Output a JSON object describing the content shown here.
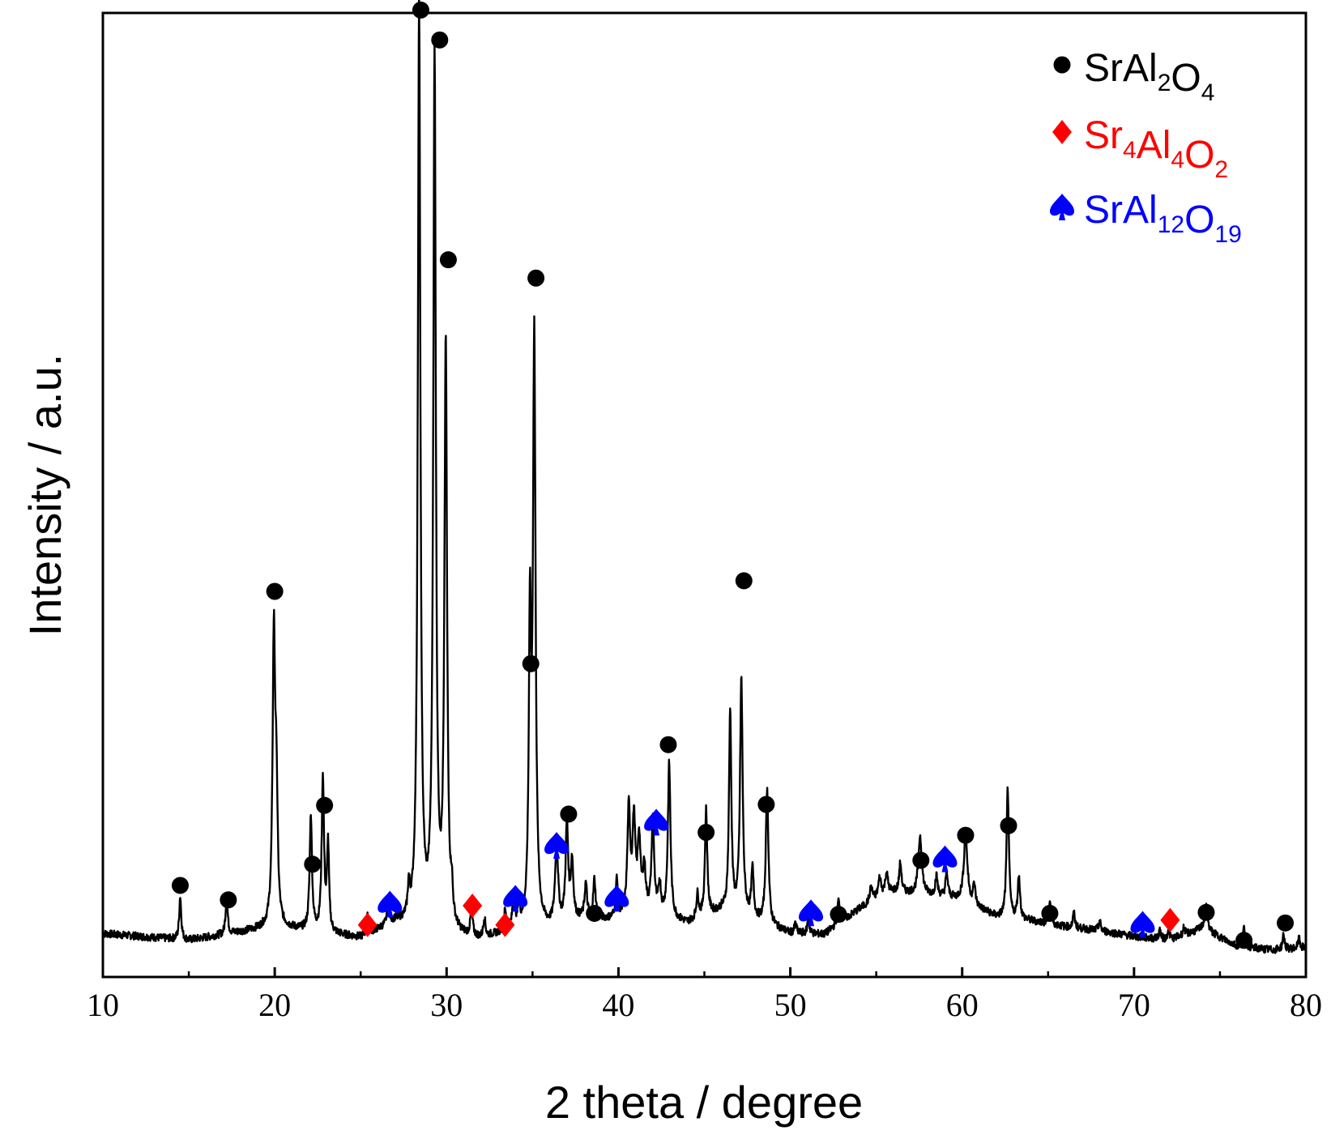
{
  "chart_data": {
    "type": "line",
    "title": "",
    "xlabel": "2 theta / degree",
    "ylabel": "Intensity / a.u.",
    "xlim": [
      10,
      80
    ],
    "ylim": [
      0,
      1000
    ],
    "xticks": [
      10,
      20,
      30,
      40,
      50,
      60,
      70,
      80
    ],
    "yticks_shown": false,
    "grid": false,
    "legend_position": "top-right",
    "colors": {
      "pattern": "#000000",
      "SrAl2O4": "#000000",
      "Sr4Al4O2": "#ff0000",
      "SrAl12O19": "#0000ff"
    },
    "legend": [
      {
        "key": "SrAl2O4",
        "marker": "circle",
        "color": "#000000",
        "parts": [
          {
            "t": "SrAl"
          },
          {
            "t": "2",
            "sub": true
          },
          {
            "t": "O"
          },
          {
            "t": "4",
            "sub": true
          }
        ]
      },
      {
        "key": "Sr4Al4O2",
        "marker": "diamond",
        "color": "#ff0000",
        "parts": [
          {
            "t": "Sr"
          },
          {
            "t": "4",
            "sub": true
          },
          {
            "t": "Al"
          },
          {
            "t": "4",
            "sub": true
          },
          {
            "t": "O"
          },
          {
            "t": "2",
            "sub": true
          }
        ]
      },
      {
        "key": "SrAl12O19",
        "marker": "spade",
        "color": "#0000ff",
        "parts": [
          {
            "t": "SrAl"
          },
          {
            "t": "12",
            "sub": true
          },
          {
            "t": "O"
          },
          {
            "t": "19",
            "sub": true
          }
        ]
      }
    ],
    "baseline": [
      [
        10,
        45
      ],
      [
        15,
        38
      ],
      [
        20,
        52
      ],
      [
        25,
        40
      ],
      [
        27,
        55
      ],
      [
        30,
        42
      ],
      [
        32,
        38
      ],
      [
        34,
        48
      ],
      [
        36,
        50
      ],
      [
        38,
        60
      ],
      [
        40,
        58
      ],
      [
        42,
        65
      ],
      [
        44,
        55
      ],
      [
        46,
        68
      ],
      [
        48,
        58
      ],
      [
        50,
        45
      ],
      [
        52,
        44
      ],
      [
        54,
        70
      ],
      [
        55,
        80
      ],
      [
        56,
        88
      ],
      [
        58,
        85
      ],
      [
        60,
        80
      ],
      [
        62,
        62
      ],
      [
        64,
        58
      ],
      [
        66,
        52
      ],
      [
        68,
        48
      ],
      [
        70,
        42
      ],
      [
        72,
        38
      ],
      [
        74,
        50
      ],
      [
        76,
        32
      ],
      [
        78,
        28
      ],
      [
        80,
        30
      ]
    ],
    "peaks": [
      {
        "x": 14.5,
        "h": 45,
        "w": 0.07
      },
      {
        "x": 17.2,
        "h": 40,
        "w": 0.07
      },
      {
        "x": 19.95,
        "h": 300,
        "w": 0.09
      },
      {
        "x": 20.1,
        "h": 120,
        "w": 0.08
      },
      {
        "x": 22.1,
        "h": 120,
        "w": 0.08
      },
      {
        "x": 22.8,
        "h": 160,
        "w": 0.08
      },
      {
        "x": 23.1,
        "h": 90,
        "w": 0.07
      },
      {
        "x": 25.4,
        "h": 18,
        "w": 0.07
      },
      {
        "x": 26.6,
        "h": 25,
        "w": 0.07
      },
      {
        "x": 27.8,
        "h": 30,
        "w": 0.07
      },
      {
        "x": 28.4,
        "h": 950,
        "w": 0.09
      },
      {
        "x": 29.3,
        "h": 900,
        "w": 0.09
      },
      {
        "x": 29.95,
        "h": 605,
        "w": 0.09
      },
      {
        "x": 30.3,
        "h": 30,
        "w": 0.07
      },
      {
        "x": 31.45,
        "h": 30,
        "w": 0.07
      },
      {
        "x": 32.2,
        "h": 20,
        "w": 0.07
      },
      {
        "x": 33.4,
        "h": 20,
        "w": 0.07
      },
      {
        "x": 33.9,
        "h": 35,
        "w": 0.07
      },
      {
        "x": 34.2,
        "h": 20,
        "w": 0.07
      },
      {
        "x": 34.85,
        "h": 300,
        "w": 0.08
      },
      {
        "x": 35.1,
        "h": 605,
        "w": 0.09
      },
      {
        "x": 36.4,
        "h": 85,
        "w": 0.1
      },
      {
        "x": 37.0,
        "h": 100,
        "w": 0.09
      },
      {
        "x": 37.3,
        "h": 60,
        "w": 0.09
      },
      {
        "x": 38.1,
        "h": 35,
        "w": 0.08
      },
      {
        "x": 38.6,
        "h": 40,
        "w": 0.08
      },
      {
        "x": 39.9,
        "h": 40,
        "w": 0.08
      },
      {
        "x": 40.6,
        "h": 110,
        "w": 0.1
      },
      {
        "x": 40.9,
        "h": 95,
        "w": 0.1
      },
      {
        "x": 41.2,
        "h": 75,
        "w": 0.1
      },
      {
        "x": 41.5,
        "h": 45,
        "w": 0.1
      },
      {
        "x": 42.0,
        "h": 95,
        "w": 0.09
      },
      {
        "x": 42.4,
        "h": 30,
        "w": 0.08
      },
      {
        "x": 42.95,
        "h": 160,
        "w": 0.09
      },
      {
        "x": 44.6,
        "h": 25,
        "w": 0.08
      },
      {
        "x": 45.1,
        "h": 110,
        "w": 0.08
      },
      {
        "x": 46.5,
        "h": 210,
        "w": 0.08
      },
      {
        "x": 47.15,
        "h": 245,
        "w": 0.09
      },
      {
        "x": 47.8,
        "h": 50,
        "w": 0.08
      },
      {
        "x": 48.65,
        "h": 140,
        "w": 0.09
      },
      {
        "x": 50.3,
        "h": 10,
        "w": 0.07
      },
      {
        "x": 51.05,
        "h": 15,
        "w": 0.07
      },
      {
        "x": 52.8,
        "h": 25,
        "w": 0.08
      },
      {
        "x": 54.7,
        "h": 15,
        "w": 0.1
      },
      {
        "x": 55.2,
        "h": 20,
        "w": 0.1
      },
      {
        "x": 55.6,
        "h": 22,
        "w": 0.1
      },
      {
        "x": 56.4,
        "h": 30,
        "w": 0.08
      },
      {
        "x": 57.55,
        "h": 60,
        "w": 0.12
      },
      {
        "x": 58.5,
        "h": 20,
        "w": 0.08
      },
      {
        "x": 59.1,
        "h": 25,
        "w": 0.08
      },
      {
        "x": 60.2,
        "h": 70,
        "w": 0.12
      },
      {
        "x": 60.7,
        "h": 20,
        "w": 0.08
      },
      {
        "x": 62.65,
        "h": 135,
        "w": 0.08
      },
      {
        "x": 63.3,
        "h": 45,
        "w": 0.08
      },
      {
        "x": 65.1,
        "h": 25,
        "w": 0.07
      },
      {
        "x": 66.5,
        "h": 15,
        "w": 0.07
      },
      {
        "x": 68.0,
        "h": 10,
        "w": 0.07
      },
      {
        "x": 71.5,
        "h": 10,
        "w": 0.07
      },
      {
        "x": 72.0,
        "h": 12,
        "w": 0.07
      },
      {
        "x": 72.9,
        "h": 8,
        "w": 0.07
      },
      {
        "x": 74.2,
        "h": 25,
        "w": 0.1
      },
      {
        "x": 76.4,
        "h": 18,
        "w": 0.08
      },
      {
        "x": 78.7,
        "h": 15,
        "w": 0.07
      },
      {
        "x": 79.6,
        "h": 10,
        "w": 0.07
      }
    ],
    "markers": [
      {
        "phase": "SrAl2O4",
        "x": 14.5,
        "y": 95
      },
      {
        "phase": "SrAl2O4",
        "x": 17.3,
        "y": 80
      },
      {
        "phase": "SrAl2O4",
        "x": 20.0,
        "y": 400
      },
      {
        "phase": "SrAl2O4",
        "x": 22.2,
        "y": 117
      },
      {
        "phase": "SrAl2O4",
        "x": 22.9,
        "y": 178
      },
      {
        "phase": "SrAl2O4",
        "x": 28.5,
        "y": 1003
      },
      {
        "phase": "SrAl2O4",
        "x": 29.6,
        "y": 972
      },
      {
        "phase": "SrAl2O4",
        "x": 30.1,
        "y": 744
      },
      {
        "phase": "SrAl2O4",
        "x": 35.2,
        "y": 725
      },
      {
        "phase": "SrAl2O4",
        "x": 34.9,
        "y": 325
      },
      {
        "phase": "SrAl2O4",
        "x": 37.1,
        "y": 169
      },
      {
        "phase": "SrAl2O4",
        "x": 38.6,
        "y": 66
      },
      {
        "phase": "SrAl2O4",
        "x": 42.9,
        "y": 241
      },
      {
        "phase": "SrAl2O4",
        "x": 45.1,
        "y": 150
      },
      {
        "phase": "SrAl2O4",
        "x": 47.3,
        "y": 411
      },
      {
        "phase": "SrAl2O4",
        "x": 48.6,
        "y": 179
      },
      {
        "phase": "SrAl2O4",
        "x": 52.8,
        "y": 65
      },
      {
        "phase": "SrAl2O4",
        "x": 57.6,
        "y": 121
      },
      {
        "phase": "SrAl2O4",
        "x": 60.2,
        "y": 147
      },
      {
        "phase": "SrAl2O4",
        "x": 62.7,
        "y": 157
      },
      {
        "phase": "SrAl2O4",
        "x": 65.1,
        "y": 66
      },
      {
        "phase": "SrAl2O4",
        "x": 74.2,
        "y": 67
      },
      {
        "phase": "SrAl2O4",
        "x": 76.4,
        "y": 38
      },
      {
        "phase": "SrAl2O4",
        "x": 78.8,
        "y": 56
      },
      {
        "phase": "Sr4Al4O2",
        "x": 25.4,
        "y": 54
      },
      {
        "phase": "Sr4Al4O2",
        "x": 31.5,
        "y": 74
      },
      {
        "phase": "Sr4Al4O2",
        "x": 33.4,
        "y": 54
      },
      {
        "phase": "Sr4Al4O2",
        "x": 72.1,
        "y": 59
      },
      {
        "phase": "SrAl12O19",
        "x": 26.7,
        "y": 76
      },
      {
        "phase": "SrAl12O19",
        "x": 34.0,
        "y": 82
      },
      {
        "phase": "SrAl12O19",
        "x": 36.4,
        "y": 137
      },
      {
        "phase": "SrAl12O19",
        "x": 39.9,
        "y": 82
      },
      {
        "phase": "SrAl12O19",
        "x": 42.2,
        "y": 161
      },
      {
        "phase": "SrAl12O19",
        "x": 51.2,
        "y": 67
      },
      {
        "phase": "SrAl12O19",
        "x": 59.0,
        "y": 123
      },
      {
        "phase": "SrAl12O19",
        "x": 70.5,
        "y": 55
      }
    ]
  }
}
